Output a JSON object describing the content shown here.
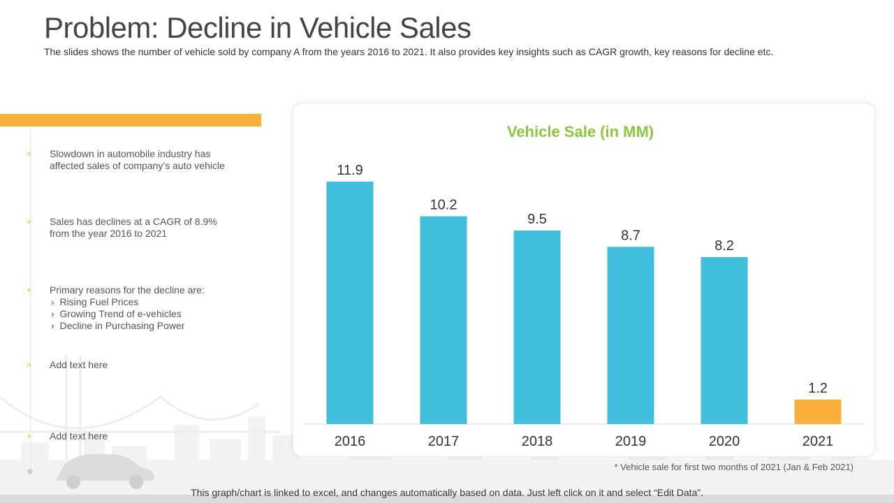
{
  "slide": {
    "title": "Problem: Decline in Vehicle Sales",
    "subtitle": "The slides shows the number of vehicle sold by company A from the years 2016 to 2021.  It also provides key insights such as CAGR growth, key reasons for decline etc."
  },
  "bullets": [
    {
      "marker": "»",
      "lines": [
        "Slowdown in automobile industry has",
        "affected sales of company’s auto vehicle"
      ]
    },
    {
      "marker": "»",
      "lines": [
        "Sales has declines at a CAGR of 8.9%",
        "from the year 2016 to 2021"
      ]
    },
    {
      "marker": "»",
      "lines": [
        "Primary reasons for the decline are:"
      ],
      "sub": [
        "Rising Fuel Prices",
        "Growing Trend of e-vehicles",
        "Decline in Purchasing Power"
      ],
      "sub_marker": "›"
    },
    {
      "marker": "»",
      "lines": [
        "Add text here"
      ]
    },
    {
      "marker": "»",
      "lines": [
        "Add text here"
      ]
    }
  ],
  "colors": {
    "accent_orange": "#fbb03b",
    "bar_blue": "#42bfdd",
    "title_green": "#8cc63f"
  },
  "chart_data": {
    "type": "bar",
    "title": "Vehicle Sale (in MM)",
    "categories": [
      "2016",
      "2017",
      "2018",
      "2019",
      "2020",
      "2021"
    ],
    "values": [
      11.9,
      10.2,
      9.5,
      8.7,
      8.2,
      1.2
    ],
    "data_labels": [
      "11.9",
      "10.2",
      "9.5",
      "8.7",
      "8.2",
      "1.2"
    ],
    "highlight_index": 5,
    "ylim": [
      0,
      11.9
    ],
    "xlabel": "",
    "ylabel": "",
    "grid": false,
    "legend": "none"
  },
  "footnote": "* Vehicle sale for first two months of 2021 (Jan & Feb 2021)",
  "bottom_note": "This graph/chart is linked to excel, and changes automatically based on data. Just left click on it and select “Edit Data”."
}
